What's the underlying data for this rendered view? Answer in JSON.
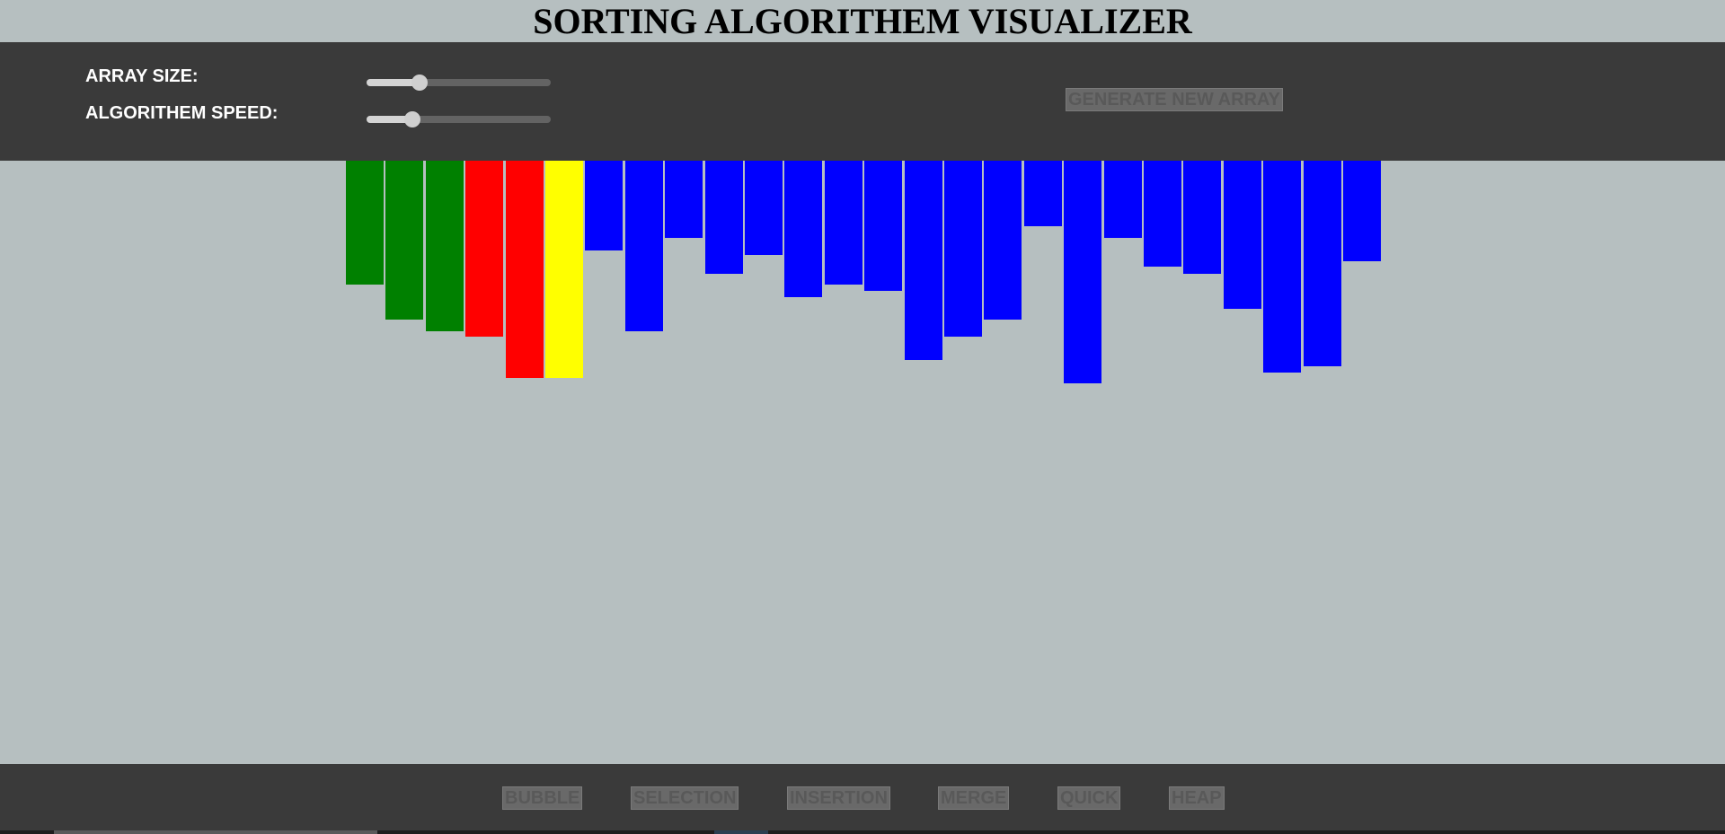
{
  "header": {
    "title": "SORTING ALGORITHEM VISUALIZER"
  },
  "controls": {
    "array_size": {
      "label": "ARRAY SIZE:",
      "value_fraction": 0.29
    },
    "speed": {
      "label": "ALGORITHEM SPEED:",
      "value_fraction": 0.25
    },
    "generate_label": "GENERATE NEW ARRAY"
  },
  "array": {
    "bar_values": [
      138,
      177,
      190,
      196,
      242,
      242,
      100,
      190,
      86,
      126,
      105,
      152,
      138,
      145,
      222,
      196,
      177,
      73,
      248,
      86,
      118,
      126,
      165,
      236,
      229,
      112
    ],
    "bar_states": [
      "sorted",
      "sorted",
      "sorted",
      "compare",
      "compare",
      "pivot",
      "unsorted",
      "unsorted",
      "unsorted",
      "unsorted",
      "unsorted",
      "unsorted",
      "unsorted",
      "unsorted",
      "unsorted",
      "unsorted",
      "unsorted",
      "unsorted",
      "unsorted",
      "unsorted",
      "unsorted",
      "unsorted",
      "unsorted",
      "unsorted",
      "unsorted",
      "unsorted"
    ],
    "state_colors": {
      "sorted": "#008000",
      "compare": "#ff0000",
      "pivot": "#ffff00",
      "unsorted": "#0000ff"
    }
  },
  "algorithms": [
    {
      "id": "bubble",
      "label": "BUBBLE"
    },
    {
      "id": "selection",
      "label": "SELECTION"
    },
    {
      "id": "insertion",
      "label": "INSERTION"
    },
    {
      "id": "merge",
      "label": "MERGE"
    },
    {
      "id": "quick",
      "label": "QUICK"
    },
    {
      "id": "heap",
      "label": "HEAP"
    }
  ]
}
